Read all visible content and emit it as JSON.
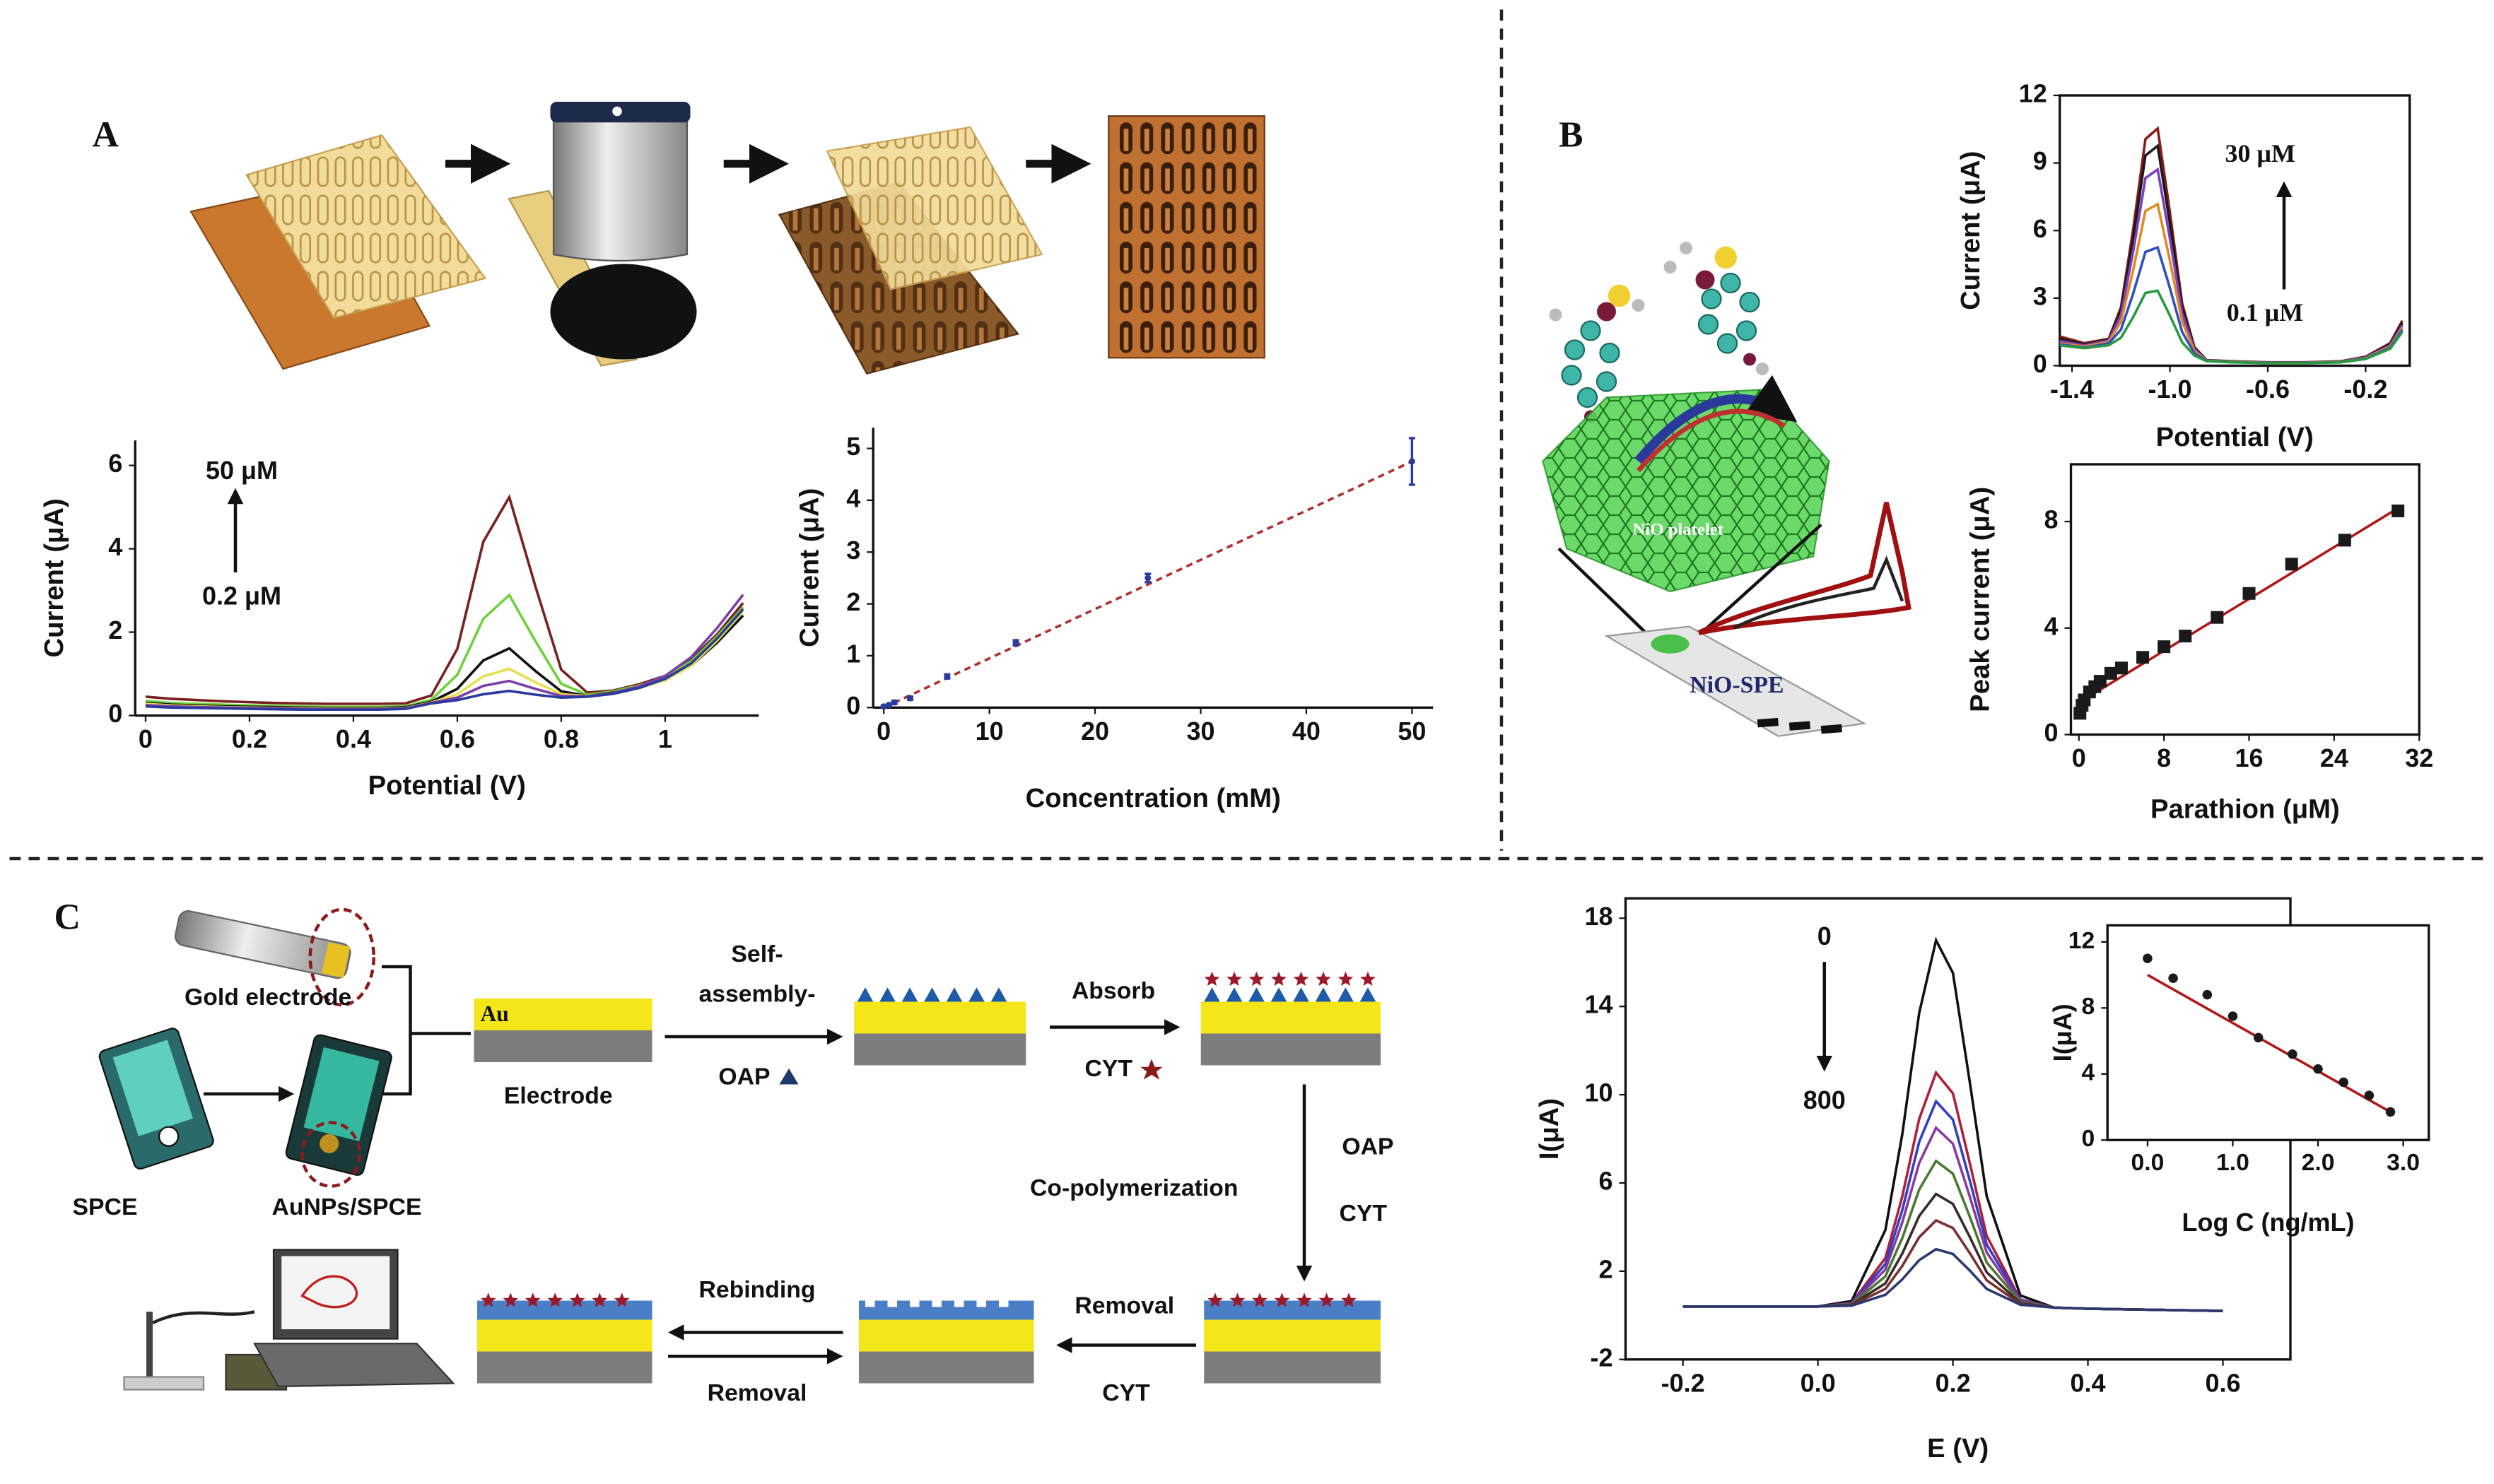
{
  "labels": {
    "a": "A",
    "b": "B",
    "c": "C"
  },
  "panel_b_scheme": {
    "platelet": "NiO platelet",
    "electrode": "NiO-SPE"
  },
  "panel_c_scheme": {
    "gold_electrode": "Gold electrode",
    "spce": "SPCE",
    "aunps_spce": "AuNPs/SPCE",
    "au": "Au",
    "electrode": "Electrode",
    "step1_top_1": "Self-",
    "step1_top_2": "assembly-",
    "step1_bottom": "OAP",
    "step2_top": "Absorb",
    "step2_bottom": "CYT",
    "step3_right_top": "OAP",
    "step3_right_bottom": "CYT",
    "step3_left": "Co-polymerization",
    "step4_top": "Removal",
    "step4_bottom": "CYT",
    "step5_top": "Rebinding",
    "step5_bottom": "Removal"
  },
  "chart_data": [
    {
      "type": "line",
      "xlabel": "Potential (V)",
      "ylabel": "Current (μA)",
      "axes": "open",
      "x": [
        0,
        0.05,
        0.1,
        0.15,
        0.2,
        0.25,
        0.3,
        0.35,
        0.4,
        0.45,
        0.5,
        0.55,
        0.6,
        0.65,
        0.7,
        0.75,
        0.8,
        0.85,
        0.9,
        0.95,
        1,
        1.05,
        1.1,
        1.15
      ],
      "series": [
        {
          "color": "#7a1f1f",
          "values": [
            0.45,
            0.4,
            0.37,
            0.34,
            0.32,
            0.3,
            0.29,
            0.28,
            0.28,
            0.28,
            0.29,
            0.48,
            1.6,
            4.17,
            5.24,
            3.11,
            1.1,
            0.55,
            0.6,
            0.75,
            0.95,
            1.35,
            1.95,
            2.7
          ]
        },
        {
          "color": "#6fd13a",
          "values": [
            0.35,
            0.3,
            0.28,
            0.26,
            0.24,
            0.23,
            0.22,
            0.21,
            0.21,
            0.21,
            0.22,
            0.38,
            0.98,
            2.32,
            2.89,
            1.79,
            0.76,
            0.5,
            0.58,
            0.72,
            0.92,
            1.3,
            1.9,
            2.6
          ]
        },
        {
          "color": "#111111",
          "values": [
            0.3,
            0.26,
            0.24,
            0.22,
            0.21,
            0.2,
            0.19,
            0.18,
            0.18,
            0.18,
            0.2,
            0.33,
            0.64,
            1.32,
            1.61,
            1.07,
            0.58,
            0.47,
            0.55,
            0.68,
            0.85,
            1.2,
            1.75,
            2.4
          ]
        },
        {
          "color": "#e8e04a",
          "values": [
            0.28,
            0.24,
            0.22,
            0.2,
            0.19,
            0.18,
            0.17,
            0.16,
            0.16,
            0.16,
            0.18,
            0.31,
            0.51,
            0.94,
            1.12,
            0.8,
            0.51,
            0.47,
            0.53,
            0.66,
            0.85,
            1.2,
            1.8,
            2.5
          ]
        },
        {
          "color": "#7b3fa8",
          "values": [
            0.25,
            0.22,
            0.2,
            0.19,
            0.18,
            0.17,
            0.16,
            0.15,
            0.15,
            0.15,
            0.17,
            0.3,
            0.43,
            0.71,
            0.83,
            0.64,
            0.47,
            0.46,
            0.54,
            0.7,
            0.95,
            1.4,
            2.1,
            2.9
          ]
        },
        {
          "color": "#2b3a9e",
          "values": [
            0.22,
            0.19,
            0.18,
            0.17,
            0.16,
            0.15,
            0.14,
            0.14,
            0.14,
            0.14,
            0.16,
            0.29,
            0.37,
            0.51,
            0.59,
            0.5,
            0.43,
            0.45,
            0.52,
            0.66,
            0.88,
            1.25,
            1.85,
            2.55
          ]
        }
      ],
      "xlim": [
        -0.02,
        1.18
      ],
      "xticks": [
        0,
        0.2,
        0.4,
        0.6,
        0.8,
        1
      ],
      "ylim": [
        0,
        6.6
      ],
      "yticks": [
        0,
        2,
        4,
        6
      ],
      "annotations": [
        "50 μM",
        "0.2 μM"
      ]
    },
    {
      "type": "scatter",
      "xlabel": "Concentration (mM)",
      "ylabel": "Current (μA)",
      "axes": "open",
      "marker": "dot",
      "color": "#2b3a9e",
      "x": [
        0,
        0.5,
        1,
        2.5,
        6,
        12.5,
        25,
        50
      ],
      "values": [
        0.02,
        0.05,
        0.1,
        0.18,
        0.6,
        1.25,
        2.5,
        4.75
      ],
      "errors": [
        0.02,
        0.02,
        0.03,
        0.03,
        0.04,
        0.05,
        0.08,
        0.45
      ],
      "trendline": {
        "x": [
          0,
          50
        ],
        "values": [
          0,
          4.75
        ],
        "color": "#b03030",
        "style": "dashed"
      },
      "xlim": [
        -1,
        52
      ],
      "xticks": [
        0,
        10,
        20,
        30,
        40,
        50
      ],
      "ylim": [
        0,
        5.4
      ],
      "yticks": [
        0,
        1,
        2,
        3,
        4,
        5
      ]
    },
    {
      "type": "line",
      "xlabel": "Potential (V)",
      "ylabel": "Current (μA)",
      "axes": "box",
      "x": [
        -1.45,
        -1.35,
        -1.25,
        -1.2,
        -1.15,
        -1.1,
        -1.05,
        -1,
        -0.95,
        -0.9,
        -0.85,
        -0.75,
        -0.6,
        -0.45,
        -0.3,
        -0.2,
        -0.1,
        -0.05
      ],
      "series": [
        {
          "color": "#8b1a1a",
          "values": [
            1.3,
            1.0,
            1.19,
            2.59,
            6.06,
            10.06,
            10.53,
            6.81,
            2.77,
            0.83,
            0.25,
            0.2,
            0.15,
            0.15,
            0.2,
            0.4,
            1.0,
            2.0
          ]
        },
        {
          "color": "#1a1a1a",
          "values": [
            1.2,
            0.95,
            1.16,
            2.45,
            5.64,
            9.33,
            9.76,
            6.32,
            2.58,
            0.79,
            0.24,
            0.19,
            0.14,
            0.14,
            0.19,
            0.38,
            0.95,
            1.9
          ]
        },
        {
          "color": "#7b3fbf",
          "values": [
            1.1,
            0.9,
            1.12,
            2.25,
            5.07,
            8.33,
            8.71,
            5.65,
            2.33,
            0.73,
            0.23,
            0.18,
            0.14,
            0.14,
            0.18,
            0.36,
            0.9,
            1.8
          ]
        },
        {
          "color": "#e08a1e",
          "values": [
            1.0,
            0.85,
            1.06,
            1.96,
            4.24,
            6.87,
            7.17,
            4.67,
            1.96,
            0.65,
            0.22,
            0.17,
            0.13,
            0.13,
            0.17,
            0.34,
            0.85,
            1.7
          ]
        },
        {
          "color": "#3050c0",
          "values": [
            0.95,
            0.8,
            0.99,
            1.6,
            3.2,
            5.05,
            5.25,
            3.45,
            1.5,
            0.55,
            0.21,
            0.16,
            0.12,
            0.12,
            0.16,
            0.32,
            0.8,
            1.6
          ]
        },
        {
          "color": "#2a9a40",
          "values": [
            0.9,
            0.78,
            0.91,
            1.24,
            2.16,
            3.23,
            3.33,
            2.23,
            1.04,
            0.45,
            0.2,
            0.15,
            0.12,
            0.12,
            0.15,
            0.3,
            0.75,
            1.5
          ]
        }
      ],
      "xlim": [
        -1.45,
        -0.02
      ],
      "xticks": [
        -1.4,
        {
          "value": -1,
          "label": "-1.0"
        },
        -0.6,
        -0.2
      ],
      "ylim": [
        0,
        12
      ],
      "yticks": [
        0,
        3,
        6,
        9,
        12
      ],
      "annotations": [
        "30 μM",
        "0.1 μM"
      ]
    },
    {
      "type": "scatter",
      "xlabel": "Parathion (μM)",
      "ylabel": "Peak current (μA)",
      "axes": "box",
      "marker": "square",
      "color": "#1a1a1a",
      "x": [
        0.1,
        0.3,
        0.5,
        1,
        1.5,
        2,
        3,
        4,
        6,
        8,
        10,
        13,
        16,
        20,
        25,
        30
      ],
      "values": [
        0.8,
        1.1,
        1.3,
        1.6,
        1.8,
        2,
        2.3,
        2.5,
        2.9,
        3.3,
        3.7,
        4.4,
        5.3,
        6.4,
        7.3,
        8.4
      ],
      "trendline": {
        "x": [
          0,
          30
        ],
        "values": [
          1.2,
          8.5
        ],
        "color": "#b01818",
        "style": "solid"
      },
      "xlim": [
        -0.75,
        32
      ],
      "xticks": [
        0,
        8,
        16,
        24,
        32
      ],
      "ylim": [
        0,
        10.15
      ],
      "yticks": [
        0,
        4,
        8
      ]
    },
    {
      "type": "line",
      "xlabel": "E (V)",
      "ylabel": "I(μA)",
      "axes": "box",
      "x": [
        -0.2,
        -0.1,
        0,
        0.05,
        0.1,
        0.125,
        0.15,
        0.175,
        0.2,
        0.225,
        0.25,
        0.3,
        0.35,
        0.4,
        0.5,
        0.6
      ],
      "series": [
        {
          "color": "#111111",
          "values": [
            0.4,
            0.4,
            0.4,
            0.65,
            3.87,
            8.21,
            13.7,
            17,
            15.52,
            10.57,
            5.4,
            0.9,
            0.35,
            0.3,
            0.25,
            0.2
          ]
        },
        {
          "color": "#b0203a",
          "values": [
            0.4,
            0.4,
            0.4,
            0.56,
            2.6,
            5.39,
            8.9,
            11,
            10.06,
            6.9,
            3.6,
            0.72,
            0.35,
            0.3,
            0.25,
            0.2
          ]
        },
        {
          "color": "#3040c0",
          "values": [
            0.4,
            0.4,
            0.4,
            0.54,
            2.33,
            4.77,
            7.86,
            9.7,
            8.87,
            6.11,
            3.21,
            0.68,
            0.35,
            0.3,
            0.25,
            0.2
          ]
        },
        {
          "color": "#8a3aa0",
          "values": [
            0.4,
            0.4,
            0.4,
            0.52,
            2.08,
            4.21,
            6.9,
            8.5,
            7.78,
            5.38,
            2.85,
            0.64,
            0.35,
            0.3,
            0.25,
            0.2
          ]
        },
        {
          "color": "#4a7a30",
          "values": [
            0.4,
            0.4,
            0.4,
            0.5,
            1.77,
            3.5,
            5.7,
            7,
            6.42,
            4.47,
            2.4,
            0.6,
            0.35,
            0.3,
            0.25,
            0.2
          ]
        },
        {
          "color": "#3a2a2a",
          "values": [
            0.4,
            0.4,
            0.4,
            0.48,
            1.45,
            2.8,
            4.5,
            5.5,
            5.05,
            3.55,
            1.95,
            0.55,
            0.35,
            0.3,
            0.25,
            0.2
          ]
        },
        {
          "color": "#7a3030",
          "values": [
            0.4,
            0.4,
            0.4,
            0.46,
            1.2,
            2.24,
            3.54,
            4.3,
            3.96,
            2.82,
            1.59,
            0.51,
            0.35,
            0.3,
            0.25,
            0.2
          ]
        },
        {
          "color": "#2a3a70",
          "values": [
            0.4,
            0.4,
            0.4,
            0.44,
            0.93,
            1.63,
            2.5,
            3,
            2.78,
            2.03,
            1.2,
            0.48,
            0.35,
            0.3,
            0.25,
            0.2
          ]
        }
      ],
      "xlim": [
        -0.285,
        0.7
      ],
      "xticks": [
        -0.2,
        {
          "value": 0,
          "label": "0.0"
        },
        0.2,
        0.4,
        0.6
      ],
      "ylim": [
        -2,
        18.9
      ],
      "yticks": [
        -2,
        2,
        6,
        10,
        14,
        18
      ],
      "annotations": [
        "0",
        "800"
      ]
    },
    {
      "type": "scatter",
      "xlabel": "Log C (ng/mL)",
      "ylabel": "I(μA)",
      "axes": "box",
      "marker": "circle",
      "color": "#1a1a1a",
      "x": [
        0,
        0.3,
        0.7,
        1,
        1.3,
        1.7,
        2,
        2.3,
        2.6,
        2.85
      ],
      "values": [
        11,
        9.8,
        8.8,
        7.5,
        6.2,
        5.2,
        4.3,
        3.5,
        2.7,
        1.7
      ],
      "trendline": {
        "x": [
          0,
          2.85
        ],
        "values": [
          10,
          1.7
        ],
        "color": "#b01818",
        "style": "solid"
      },
      "xlim": [
        -0.47,
        3.3
      ],
      "xticks": [
        {
          "value": 0,
          "label": "0.0"
        },
        {
          "value": 1,
          "label": "1.0"
        },
        {
          "value": 2,
          "label": "2.0"
        },
        {
          "value": 3,
          "label": "3.0"
        }
      ],
      "ylim": [
        0,
        13
      ],
      "yticks": [
        0,
        4,
        8,
        12
      ]
    }
  ]
}
